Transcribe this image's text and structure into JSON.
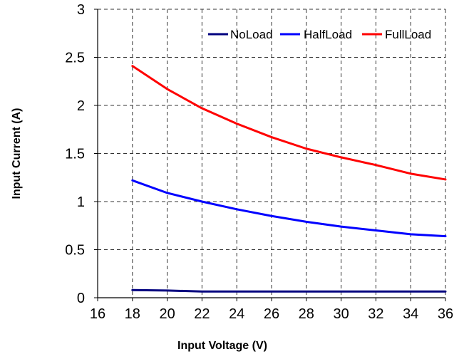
{
  "chart_data": {
    "type": "line",
    "xlabel": "Input Voltage (V)",
    "ylabel": "Input Current (A)",
    "xlim": [
      16,
      36
    ],
    "ylim": [
      0,
      3
    ],
    "xticks": [
      "16",
      "18",
      "20",
      "22",
      "24",
      "26",
      "28",
      "30",
      "32",
      "34",
      "36"
    ],
    "yticks": [
      "0",
      "0.5",
      "1",
      "1.5",
      "2",
      "2.5",
      "3"
    ],
    "grid": true,
    "legend_position": "top-right",
    "series": [
      {
        "name": "NoLoad",
        "color": "#00007F",
        "x": [
          18,
          20,
          22,
          24,
          26,
          28,
          30,
          32,
          34,
          36
        ],
        "values": [
          0.08,
          0.075,
          0.065,
          0.065,
          0.065,
          0.065,
          0.065,
          0.065,
          0.065,
          0.065
        ]
      },
      {
        "name": "HalfLoad",
        "color": "#0000FF",
        "x": [
          18,
          20,
          22,
          24,
          26,
          28,
          30,
          32,
          34,
          36
        ],
        "values": [
          1.22,
          1.09,
          1.0,
          0.92,
          0.85,
          0.79,
          0.74,
          0.7,
          0.66,
          0.64
        ]
      },
      {
        "name": "FullLoad",
        "color": "#FF0000",
        "x": [
          18,
          20,
          22,
          24,
          26,
          28,
          30,
          32,
          34,
          36
        ],
        "values": [
          2.41,
          2.17,
          1.97,
          1.81,
          1.67,
          1.55,
          1.46,
          1.38,
          1.29,
          1.23
        ]
      }
    ]
  }
}
